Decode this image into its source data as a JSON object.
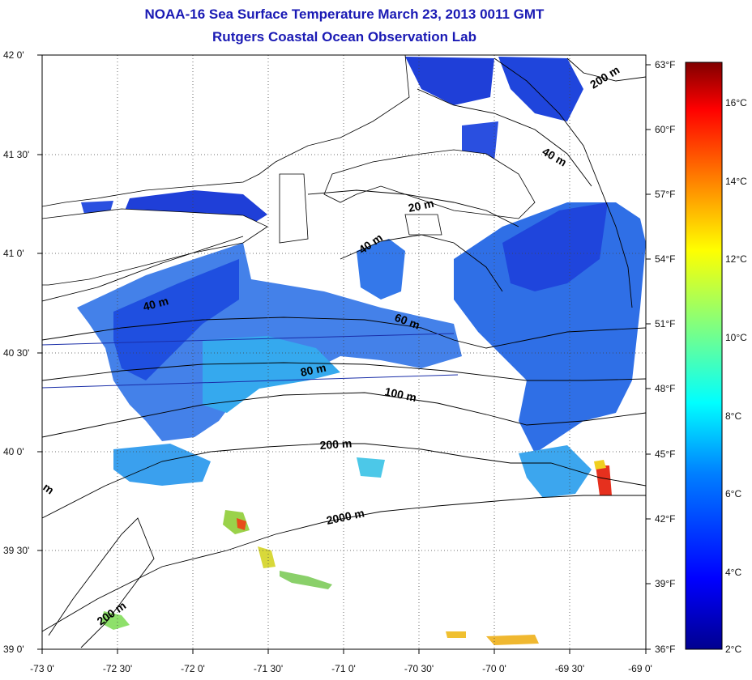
{
  "title": {
    "line1": "NOAA-16 Sea Surface Temperature March 23, 2013 0011 GMT",
    "line2": "Rutgers Coastal Ocean Observation Lab"
  },
  "map": {
    "lon_ticks": [
      "-73 0'",
      "-72 30'",
      "-72 0'",
      "-71 30'",
      "-71 0'",
      "-70 30'",
      "-70 0'",
      "-69 30'",
      "-69 0'"
    ],
    "lat_ticks": [
      "39 0'",
      "39 30'",
      "40 0'",
      "40 30'",
      "41 0'",
      "41 30'",
      "42 0'"
    ],
    "lon_range": [
      -73.0,
      -69.0
    ],
    "lat_range": [
      39.0,
      42.0
    ],
    "grid": "dotted",
    "land_color": "#ffffff",
    "contour_color": "#000000",
    "contour_labels": [
      "20 m",
      "40 m",
      "40 m",
      "40 m",
      "60 m",
      "80 m",
      "100 m",
      "200 m",
      "200 m",
      "200 m",
      "2000 m",
      "m"
    ]
  },
  "colorbar": {
    "fahrenheit_labels": [
      "63°F",
      "60°F",
      "57°F",
      "54°F",
      "51°F",
      "48°F",
      "45°F",
      "42°F",
      "39°F",
      "36°F"
    ],
    "celsius_labels": [
      "16°C",
      "14°C",
      "12°C",
      "10°C",
      "8°C",
      "6°C",
      "4°C",
      "2°C"
    ],
    "range_celsius": [
      2.0,
      17.2
    ],
    "colormap": "jet",
    "colors": [
      "#00008f",
      "#0000ff",
      "#0080ff",
      "#00ffff",
      "#80ff80",
      "#ffff00",
      "#ff8000",
      "#ff0000",
      "#800000"
    ]
  },
  "colors": {
    "title": "#1a1ab4",
    "cold_water": "#1f4fe0",
    "cool_water": "#2f7ff0",
    "mid_water": "#34a8f0",
    "warm_spot": "#e6301e"
  }
}
